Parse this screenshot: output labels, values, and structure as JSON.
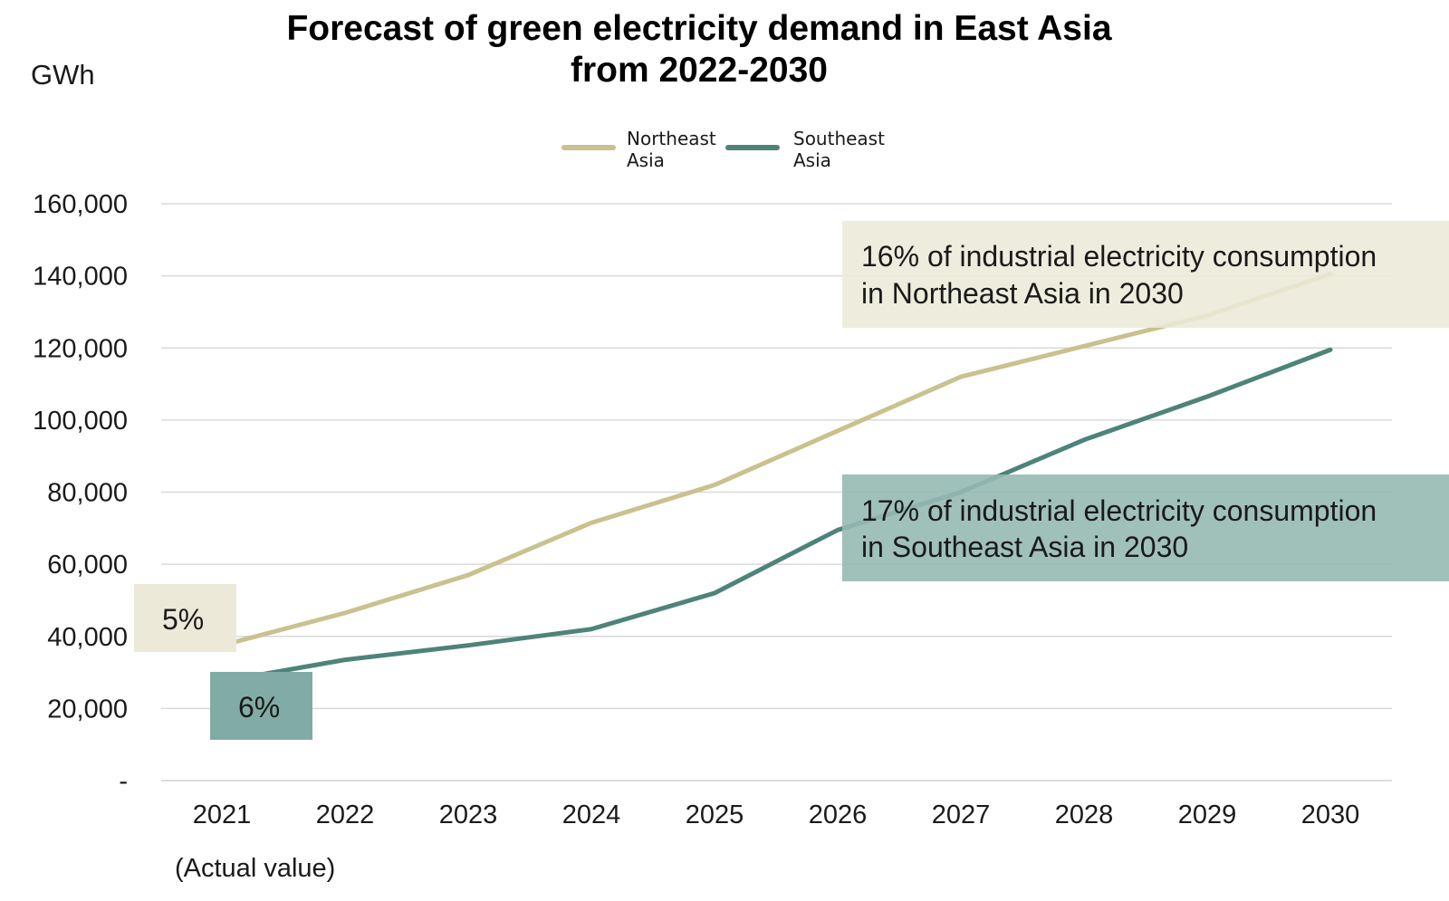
{
  "chart_data": {
    "type": "line",
    "title_lines": [
      "Forecast of green electricity demand in East Asia",
      "from 2022-2030"
    ],
    "unit_label": "GWh",
    "categories": [
      "2021",
      "2022",
      "2023",
      "2024",
      "2025",
      "2026",
      "2027",
      "2028",
      "2029",
      "2030"
    ],
    "category_sublabel": "(Actual value)",
    "y_tick_labels": [
      "-",
      "20,000",
      "40,000",
      "60,000",
      "80,000",
      "100,000",
      "120,000",
      "140,000",
      "160,000"
    ],
    "y_ticks": [
      0,
      20000,
      40000,
      60000,
      80000,
      100000,
      120000,
      140000,
      160000
    ],
    "ylim": [
      0,
      160000
    ],
    "grid": true,
    "legend_position": "top-center",
    "series": [
      {
        "name_lines": [
          "Northeast",
          "Asia"
        ],
        "color": "#c9c28e",
        "values": [
          37500,
          46500,
          57000,
          71500,
          82000,
          97000,
          112000,
          120500,
          129000,
          140500
        ]
      },
      {
        "name_lines": [
          "Southeast",
          "Asia"
        ],
        "color": "#4e837a",
        "values": [
          27500,
          33500,
          37500,
          42000,
          52000,
          69500,
          80000,
          94500,
          106500,
          119500
        ]
      }
    ],
    "annotations": [
      {
        "lines": [
          "5%"
        ],
        "fill": "#ece9d8"
      },
      {
        "lines": [
          "6%"
        ],
        "fill": "#81aca5"
      },
      {
        "lines": [
          "16% of industrial electricity consumption",
          "in Northeast Asia in 2030"
        ],
        "fill": "#ece9d8"
      },
      {
        "lines": [
          "17% of industrial electricity consumption",
          "in Southeast Asia in 2030"
        ],
        "fill": "#96b9b3"
      }
    ]
  }
}
